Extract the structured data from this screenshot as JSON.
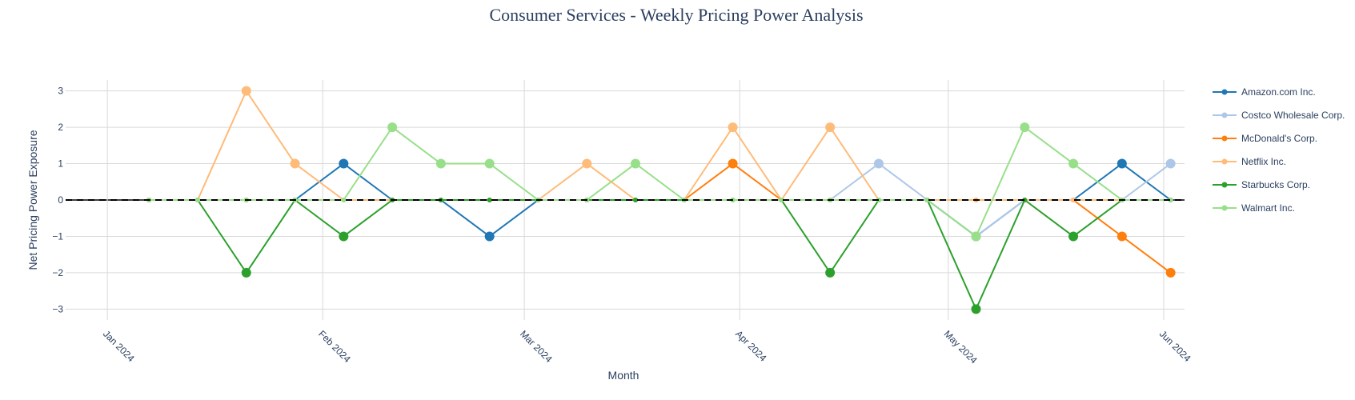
{
  "chart_data": {
    "type": "line",
    "title": "Consumer Services - Weekly Pricing Power Analysis",
    "xlabel": "Month",
    "ylabel": "Net Pricing Power Exposure",
    "ylim": [
      -3.3,
      3.3
    ],
    "yticks": [
      3,
      2,
      1,
      0,
      -1,
      -2,
      -3
    ],
    "ytick_labels": [
      "3",
      "2",
      "1",
      "0",
      "−1",
      "−2",
      "−3"
    ],
    "xlim": [
      "2023-12-26",
      "2024-06-04"
    ],
    "xticks": [
      "2024-01-01",
      "2024-02-01",
      "2024-03-01",
      "2024-04-01",
      "2024-05-01",
      "2024-06-01"
    ],
    "xtick_labels": [
      "Jan 2024",
      "Feb 2024",
      "Mar 2024",
      "Apr 2024",
      "May 2024",
      "Jun 2024"
    ],
    "x": [
      "2024-01-07",
      "2024-01-14",
      "2024-01-21",
      "2024-01-28",
      "2024-02-04",
      "2024-02-11",
      "2024-02-18",
      "2024-02-25",
      "2024-03-03",
      "2024-03-10",
      "2024-03-17",
      "2024-03-24",
      "2024-03-31",
      "2024-04-07",
      "2024-04-14",
      "2024-04-21",
      "2024-04-28",
      "2024-05-05",
      "2024-05-12",
      "2024-05-19",
      "2024-05-26",
      "2024-06-02"
    ],
    "zero_line": {
      "value": 0,
      "style": "dashed"
    },
    "grid": true,
    "legend_position": "right",
    "series": [
      {
        "name": "Amazon.com Inc.",
        "color": "#1f77b4",
        "values": [
          0,
          0,
          0,
          0,
          1,
          0,
          0,
          -1,
          0,
          0,
          0,
          0,
          0,
          0,
          0,
          0,
          0,
          -1,
          0,
          0,
          1,
          0
        ]
      },
      {
        "name": "Costco Wholesale Corp.",
        "color": "#aec7e8",
        "values": [
          0,
          0,
          0,
          0,
          0,
          0,
          0,
          0,
          0,
          0,
          0,
          0,
          0,
          0,
          0,
          1,
          0,
          -1,
          0,
          0,
          0,
          1
        ]
      },
      {
        "name": "McDonald's Corp.",
        "color": "#ff7f0e",
        "values": [
          0,
          0,
          0,
          0,
          0,
          0,
          0,
          0,
          0,
          0,
          0,
          0,
          1,
          0,
          0,
          0,
          0,
          0,
          0,
          0,
          -1,
          -2
        ]
      },
      {
        "name": "Netflix Inc.",
        "color": "#ffbb78",
        "values": [
          0,
          0,
          3,
          1,
          0,
          0,
          0,
          0,
          0,
          1,
          0,
          0,
          2,
          0,
          2,
          0,
          0,
          0,
          0,
          0,
          0,
          0
        ]
      },
      {
        "name": "Starbucks Corp.",
        "color": "#2ca02c",
        "values": [
          0,
          0,
          -2,
          0,
          -1,
          0,
          0,
          0,
          0,
          0,
          0,
          0,
          0,
          0,
          -2,
          0,
          0,
          -3,
          0,
          -1,
          0,
          0
        ]
      },
      {
        "name": "Walmart Inc.",
        "color": "#98df8a",
        "values": [
          0,
          0,
          0,
          0,
          0,
          2,
          1,
          1,
          0,
          0,
          1,
          0,
          0,
          0,
          0,
          0,
          0,
          -1,
          2,
          1,
          0,
          0
        ]
      }
    ]
  }
}
